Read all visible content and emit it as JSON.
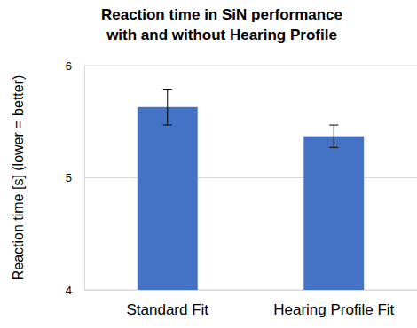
{
  "chart_data": {
    "type": "bar",
    "title": [
      "Reaction time in SiN performance",
      "with and without Hearing Profile"
    ],
    "y_label": "Reaction time [s] (lower = better)",
    "categories": [
      "Standard Fit",
      "Hearing Profile Fit"
    ],
    "values": [
      5.63,
      5.37
    ],
    "errors": [
      0.16,
      0.1
    ],
    "color": "#4472c4",
    "ylim": [
      4,
      6
    ],
    "yticks": [
      4,
      5,
      6
    ],
    "grid": true
  }
}
